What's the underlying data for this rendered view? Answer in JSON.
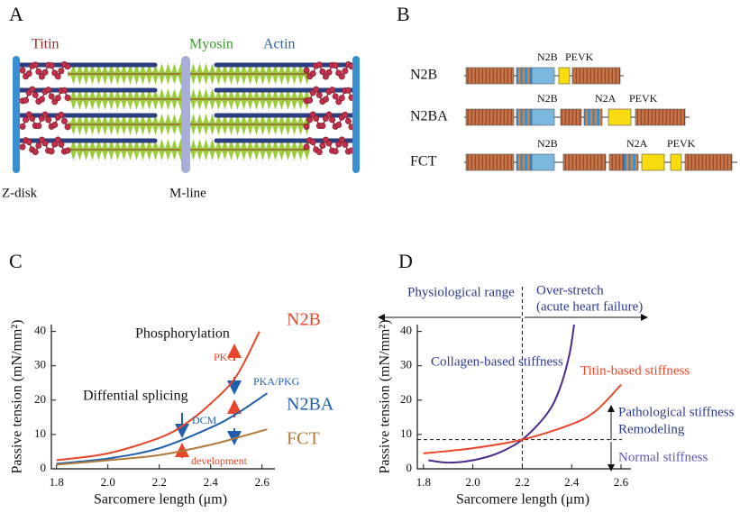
{
  "panel_a": {
    "label": "A",
    "titin": "Titin",
    "myosin": "Myosin",
    "actin": "Actin",
    "z_disk": "Z-disk",
    "m_line": "M-line"
  },
  "panel_b": {
    "label": "B",
    "isoforms": [
      {
        "name": "N2B",
        "domains": [
          "N2B",
          "PEVK"
        ]
      },
      {
        "name": "N2BA",
        "domains": [
          "N2B",
          "N2A",
          "PEVK"
        ]
      },
      {
        "name": "FCT",
        "domains": [
          "N2B",
          "N2A",
          "PEVK"
        ]
      }
    ]
  },
  "chart_data": [
    {
      "type": "line",
      "panel": "C",
      "xlabel": "Sarcomere length (μm)",
      "ylabel": "Passive tension (mN/mm²)",
      "xlim": [
        1.78,
        2.65
      ],
      "ylim": [
        0,
        42
      ],
      "xticks": [
        1.8,
        {
          "value": 2,
          "label": "2.0"
        },
        2.2,
        2.4,
        2.6
      ],
      "yticks": [
        0,
        10,
        20,
        30,
        40
      ],
      "series": [
        {
          "name": "N2B",
          "color": "#e8462a",
          "x": [
            1.8,
            2.0,
            2.2,
            2.3,
            2.4,
            2.5,
            2.59
          ],
          "values": [
            2.5,
            4.5,
            9,
            13,
            19,
            27,
            40
          ]
        },
        {
          "name": "N2BA",
          "color": "#1f5fae",
          "x": [
            1.8,
            2.0,
            2.2,
            2.4,
            2.5,
            2.62
          ],
          "values": [
            1.5,
            3,
            6,
            12,
            16,
            22
          ]
        },
        {
          "name": "FCT",
          "color": "#b07a3a",
          "x": [
            1.8,
            2.0,
            2.2,
            2.4,
            2.5,
            2.62
          ],
          "values": [
            1.2,
            2.5,
            4,
            7,
            9,
            11.5
          ]
        }
      ],
      "annotations": [
        "Phosphorylation",
        "PKC",
        "PKA/PKG",
        "Diffential splicing",
        "DCM",
        "development"
      ]
    },
    {
      "type": "line",
      "panel": "D",
      "xlabel": "Sarcomere length (μm)",
      "ylabel": "Passive tension (mN/mm²)",
      "xlim": [
        1.775,
        2.64
      ],
      "ylim": [
        0,
        42
      ],
      "xticks": [
        1.8,
        {
          "value": 2,
          "label": "2.0"
        },
        2.2,
        2.4,
        2.6
      ],
      "yticks": [
        0,
        10,
        20,
        30,
        40
      ],
      "vline": 2.2,
      "hline": 8.5,
      "series": [
        {
          "name": "Collagen-based stiffness",
          "color": "#4b2a8a",
          "x": [
            1.82,
            1.9,
            2.0,
            2.1,
            2.2,
            2.3,
            2.35,
            2.39,
            2.41
          ],
          "values": [
            2.5,
            1.8,
            2.5,
            4.5,
            8.5,
            16,
            23,
            33,
            42
          ]
        },
        {
          "name": "Titin-based stiffness",
          "color": "#e8462a",
          "x": [
            1.8,
            2.0,
            2.2,
            2.4,
            2.5,
            2.6
          ],
          "values": [
            4.5,
            6,
            8.5,
            13,
            17,
            24.5
          ]
        }
      ],
      "annotations": [
        "Physiological range",
        "Over-stretch",
        "(acute heart failure)",
        "Pathological stiffness",
        "Remodeling",
        "Normal stiffness"
      ]
    }
  ]
}
